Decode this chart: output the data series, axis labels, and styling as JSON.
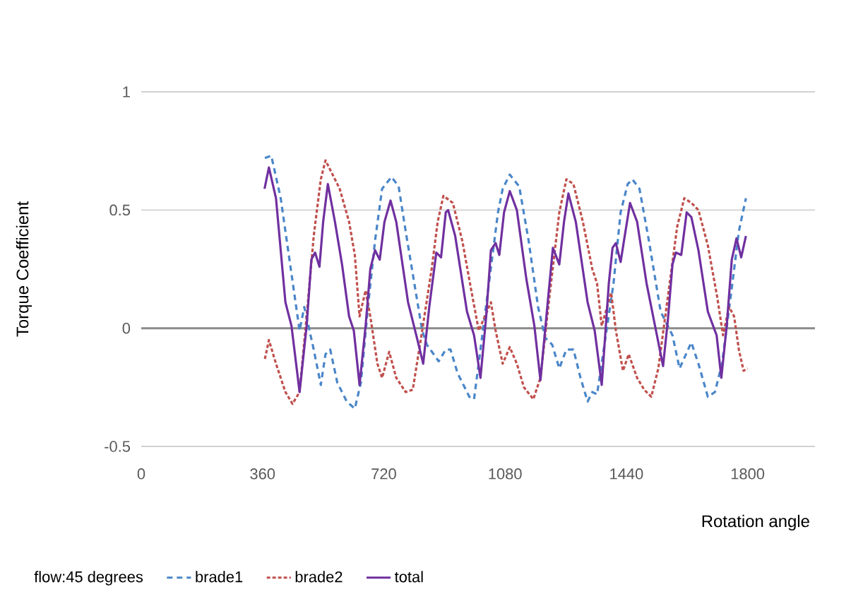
{
  "chart_data": {
    "type": "line",
    "xlabel": "Rotation angle",
    "ylabel": "Torque Coefficient",
    "legend_title": "flow:45 degrees",
    "xlim": [
      0,
      2000
    ],
    "ylim": [
      -0.5,
      1
    ],
    "xticks": [
      0,
      360,
      720,
      1080,
      1440,
      1800
    ],
    "yticks": [
      -0.5,
      0,
      0.5,
      1
    ],
    "grid": "y",
    "legend": "bottom",
    "ref_lines": [
      {
        "axis": "y",
        "value": 0,
        "color": "#8c8c8c"
      }
    ],
    "marker": "none",
    "series": [
      {
        "name": "brade1",
        "color": "#4a86c8",
        "line_style": "dashed",
        "x": [
          367,
          386,
          414,
          442,
          470,
          484,
          512,
          533,
          547,
          561,
          582,
          610,
          634,
          652,
          673,
          694,
          715,
          743,
          764,
          785,
          813,
          834,
          848,
          883,
          904,
          918,
          939,
          974,
          988,
          1016,
          1059,
          1073,
          1094,
          1122,
          1150,
          1178,
          1199,
          1220,
          1241,
          1262,
          1283,
          1304,
          1325,
          1339,
          1353,
          1402,
          1423,
          1444,
          1458,
          1479,
          1507,
          1542,
          1577,
          1598,
          1633,
          1654,
          1682,
          1703,
          1724,
          1753,
          1774,
          1795
        ],
        "values": [
          0.72,
          0.73,
          0.55,
          0.27,
          -0.01,
          0.09,
          -0.09,
          -0.24,
          -0.11,
          -0.09,
          -0.23,
          -0.31,
          -0.34,
          -0.23,
          0.09,
          0.37,
          0.59,
          0.64,
          0.6,
          0.41,
          0.17,
          -0.01,
          -0.07,
          -0.14,
          -0.09,
          -0.09,
          -0.19,
          -0.29,
          -0.3,
          0.01,
          0.49,
          0.59,
          0.65,
          0.6,
          0.37,
          0.09,
          -0.04,
          -0.07,
          -0.17,
          -0.09,
          -0.09,
          -0.21,
          -0.31,
          -0.27,
          -0.28,
          0.19,
          0.49,
          0.61,
          0.63,
          0.59,
          0.37,
          0.07,
          -0.03,
          -0.17,
          -0.06,
          -0.15,
          -0.29,
          -0.27,
          -0.15,
          0.17,
          0.41,
          0.55
        ]
      },
      {
        "name": "brade2",
        "color": "#c0504d",
        "line_style": "dashed",
        "x": [
          367,
          379,
          400,
          428,
          449,
          470,
          491,
          512,
          533,
          547,
          568,
          589,
          617,
          634,
          648,
          666,
          680,
          701,
          715,
          736,
          757,
          785,
          806,
          834,
          862,
          880,
          897,
          925,
          953,
          981,
          1002,
          1038,
          1052,
          1073,
          1094,
          1115,
          1136,
          1164,
          1185,
          1213,
          1241,
          1262,
          1283,
          1311,
          1339,
          1353,
          1367,
          1395,
          1409,
          1430,
          1447,
          1472,
          1493,
          1514,
          1535,
          1563,
          1591,
          1612,
          1633,
          1654,
          1682,
          1710,
          1727,
          1745,
          1760,
          1774,
          1788,
          1800
        ],
        "values": [
          -0.13,
          -0.05,
          -0.15,
          -0.27,
          -0.32,
          -0.27,
          0.05,
          0.39,
          0.63,
          0.71,
          0.65,
          0.59,
          0.45,
          0.31,
          0.05,
          0.16,
          0.05,
          -0.15,
          -0.21,
          -0.1,
          -0.21,
          -0.27,
          -0.26,
          -0.01,
          0.25,
          0.45,
          0.56,
          0.53,
          0.37,
          0.15,
          -0.01,
          0.11,
          -0.01,
          -0.15,
          -0.08,
          -0.15,
          -0.25,
          -0.3,
          -0.21,
          0.15,
          0.49,
          0.63,
          0.61,
          0.45,
          0.25,
          0.19,
          0.01,
          0.15,
          -0.01,
          -0.18,
          -0.11,
          -0.21,
          -0.26,
          -0.29,
          -0.17,
          0.13,
          0.43,
          0.55,
          0.53,
          0.5,
          0.35,
          0.13,
          -0.03,
          0.09,
          0.05,
          -0.09,
          -0.18,
          -0.17
        ]
      },
      {
        "name": "total",
        "color": "#7030a0",
        "line_style": "solid",
        "x": [
          366,
          379,
          400,
          428,
          446,
          470,
          491,
          505,
          516,
          529,
          540,
          554,
          575,
          596,
          617,
          631,
          648,
          666,
          680,
          694,
          708,
          722,
          740,
          757,
          792,
          820,
          837,
          855,
          876,
          890,
          904,
          911,
          932,
          967,
          988,
          1007,
          1024,
          1038,
          1052,
          1063,
          1077,
          1094,
          1115,
          1143,
          1167,
          1185,
          1208,
          1222,
          1241,
          1255,
          1268,
          1290,
          1325,
          1346,
          1367,
          1388,
          1399,
          1409,
          1423,
          1433,
          1451,
          1472,
          1500,
          1528,
          1549,
          1563,
          1577,
          1587,
          1603,
          1619,
          1633,
          1654,
          1682,
          1708,
          1722,
          1738,
          1753,
          1767,
          1781,
          1795
        ],
        "values": [
          0.59,
          0.68,
          0.55,
          0.11,
          0.01,
          -0.27,
          0.01,
          0.29,
          0.32,
          0.26,
          0.45,
          0.61,
          0.45,
          0.27,
          0.05,
          -0.01,
          -0.24,
          0.01,
          0.25,
          0.33,
          0.29,
          0.45,
          0.54,
          0.45,
          0.11,
          -0.05,
          -0.15,
          0.09,
          0.32,
          0.3,
          0.49,
          0.5,
          0.39,
          0.07,
          -0.03,
          -0.21,
          0.05,
          0.33,
          0.36,
          0.31,
          0.49,
          0.58,
          0.5,
          0.21,
          0.01,
          -0.22,
          0.13,
          0.34,
          0.27,
          0.45,
          0.57,
          0.45,
          0.11,
          -0.01,
          -0.24,
          0.19,
          0.34,
          0.36,
          0.28,
          0.37,
          0.53,
          0.45,
          0.19,
          -0.01,
          -0.16,
          0.03,
          0.27,
          0.32,
          0.31,
          0.49,
          0.47,
          0.33,
          0.07,
          -0.03,
          -0.21,
          0.01,
          0.29,
          0.38,
          0.3,
          0.39
        ]
      }
    ]
  }
}
